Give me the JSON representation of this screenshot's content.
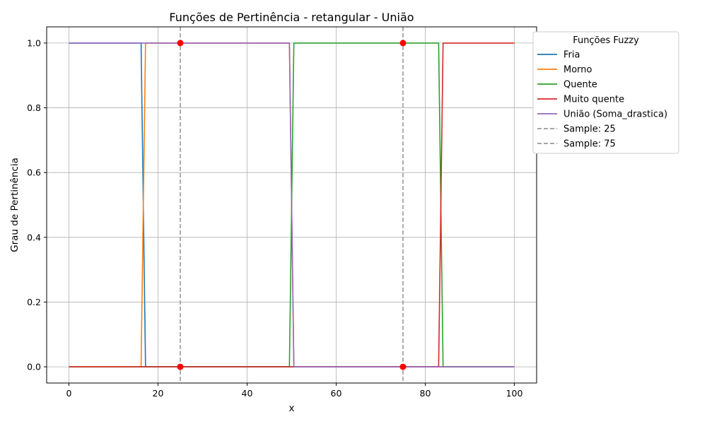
{
  "chart_data": {
    "type": "line",
    "title": "Funções de Pertinência - retangular - União",
    "xlabel": "x",
    "ylabel": "Grau de Pertinência",
    "xlim": [
      -5,
      105
    ],
    "ylim": [
      -0.05,
      1.05
    ],
    "xticks": [
      0,
      20,
      40,
      60,
      80,
      100
    ],
    "xtick_labels": [
      "0",
      "20",
      "40",
      "60",
      "80",
      "100"
    ],
    "yticks": [
      0,
      0.2,
      0.4,
      0.6,
      0.8,
      1.0
    ],
    "ytick_labels": [
      "0.0",
      "0.2",
      "0.4",
      "0.6",
      "0.8",
      "1.0"
    ],
    "grid": true,
    "legend_title": "Funções Fuzzy",
    "legend_placement": "outside-top-right",
    "series": [
      {
        "name": "Fria",
        "color": "#1f77b4",
        "x": [
          0,
          16.2,
          17.2,
          100
        ],
        "y": [
          1,
          1,
          0,
          0
        ]
      },
      {
        "name": "Morno",
        "color": "#ff7f0e",
        "x": [
          0,
          16.2,
          17.2,
          49.5,
          50.5,
          100
        ],
        "y": [
          0,
          0,
          1,
          1,
          0,
          0
        ]
      },
      {
        "name": "Quente",
        "color": "#2ca02c",
        "x": [
          0,
          49.5,
          50.5,
          83.0,
          84.0,
          100
        ],
        "y": [
          0,
          0,
          1,
          1,
          0,
          0
        ]
      },
      {
        "name": "Muito quente",
        "color": "#d62728",
        "x": [
          0,
          83.0,
          84.0,
          100
        ],
        "y": [
          0,
          0,
          1,
          1
        ]
      },
      {
        "name": "União (Soma_drastica)",
        "color": "#9467bd",
        "x": [
          0,
          49.5,
          50.5,
          100
        ],
        "y": [
          1,
          1,
          0,
          0
        ]
      }
    ],
    "vlines": [
      {
        "name": "Sample: 25",
        "x": 25,
        "color": "#999999"
      },
      {
        "name": "Sample: 75",
        "x": 75,
        "color": "#999999"
      }
    ],
    "points": {
      "color": "#ff0000",
      "items": [
        {
          "x": 25,
          "y": 1
        },
        {
          "x": 25,
          "y": 0
        },
        {
          "x": 75,
          "y": 1
        },
        {
          "x": 75,
          "y": 0
        }
      ]
    }
  }
}
